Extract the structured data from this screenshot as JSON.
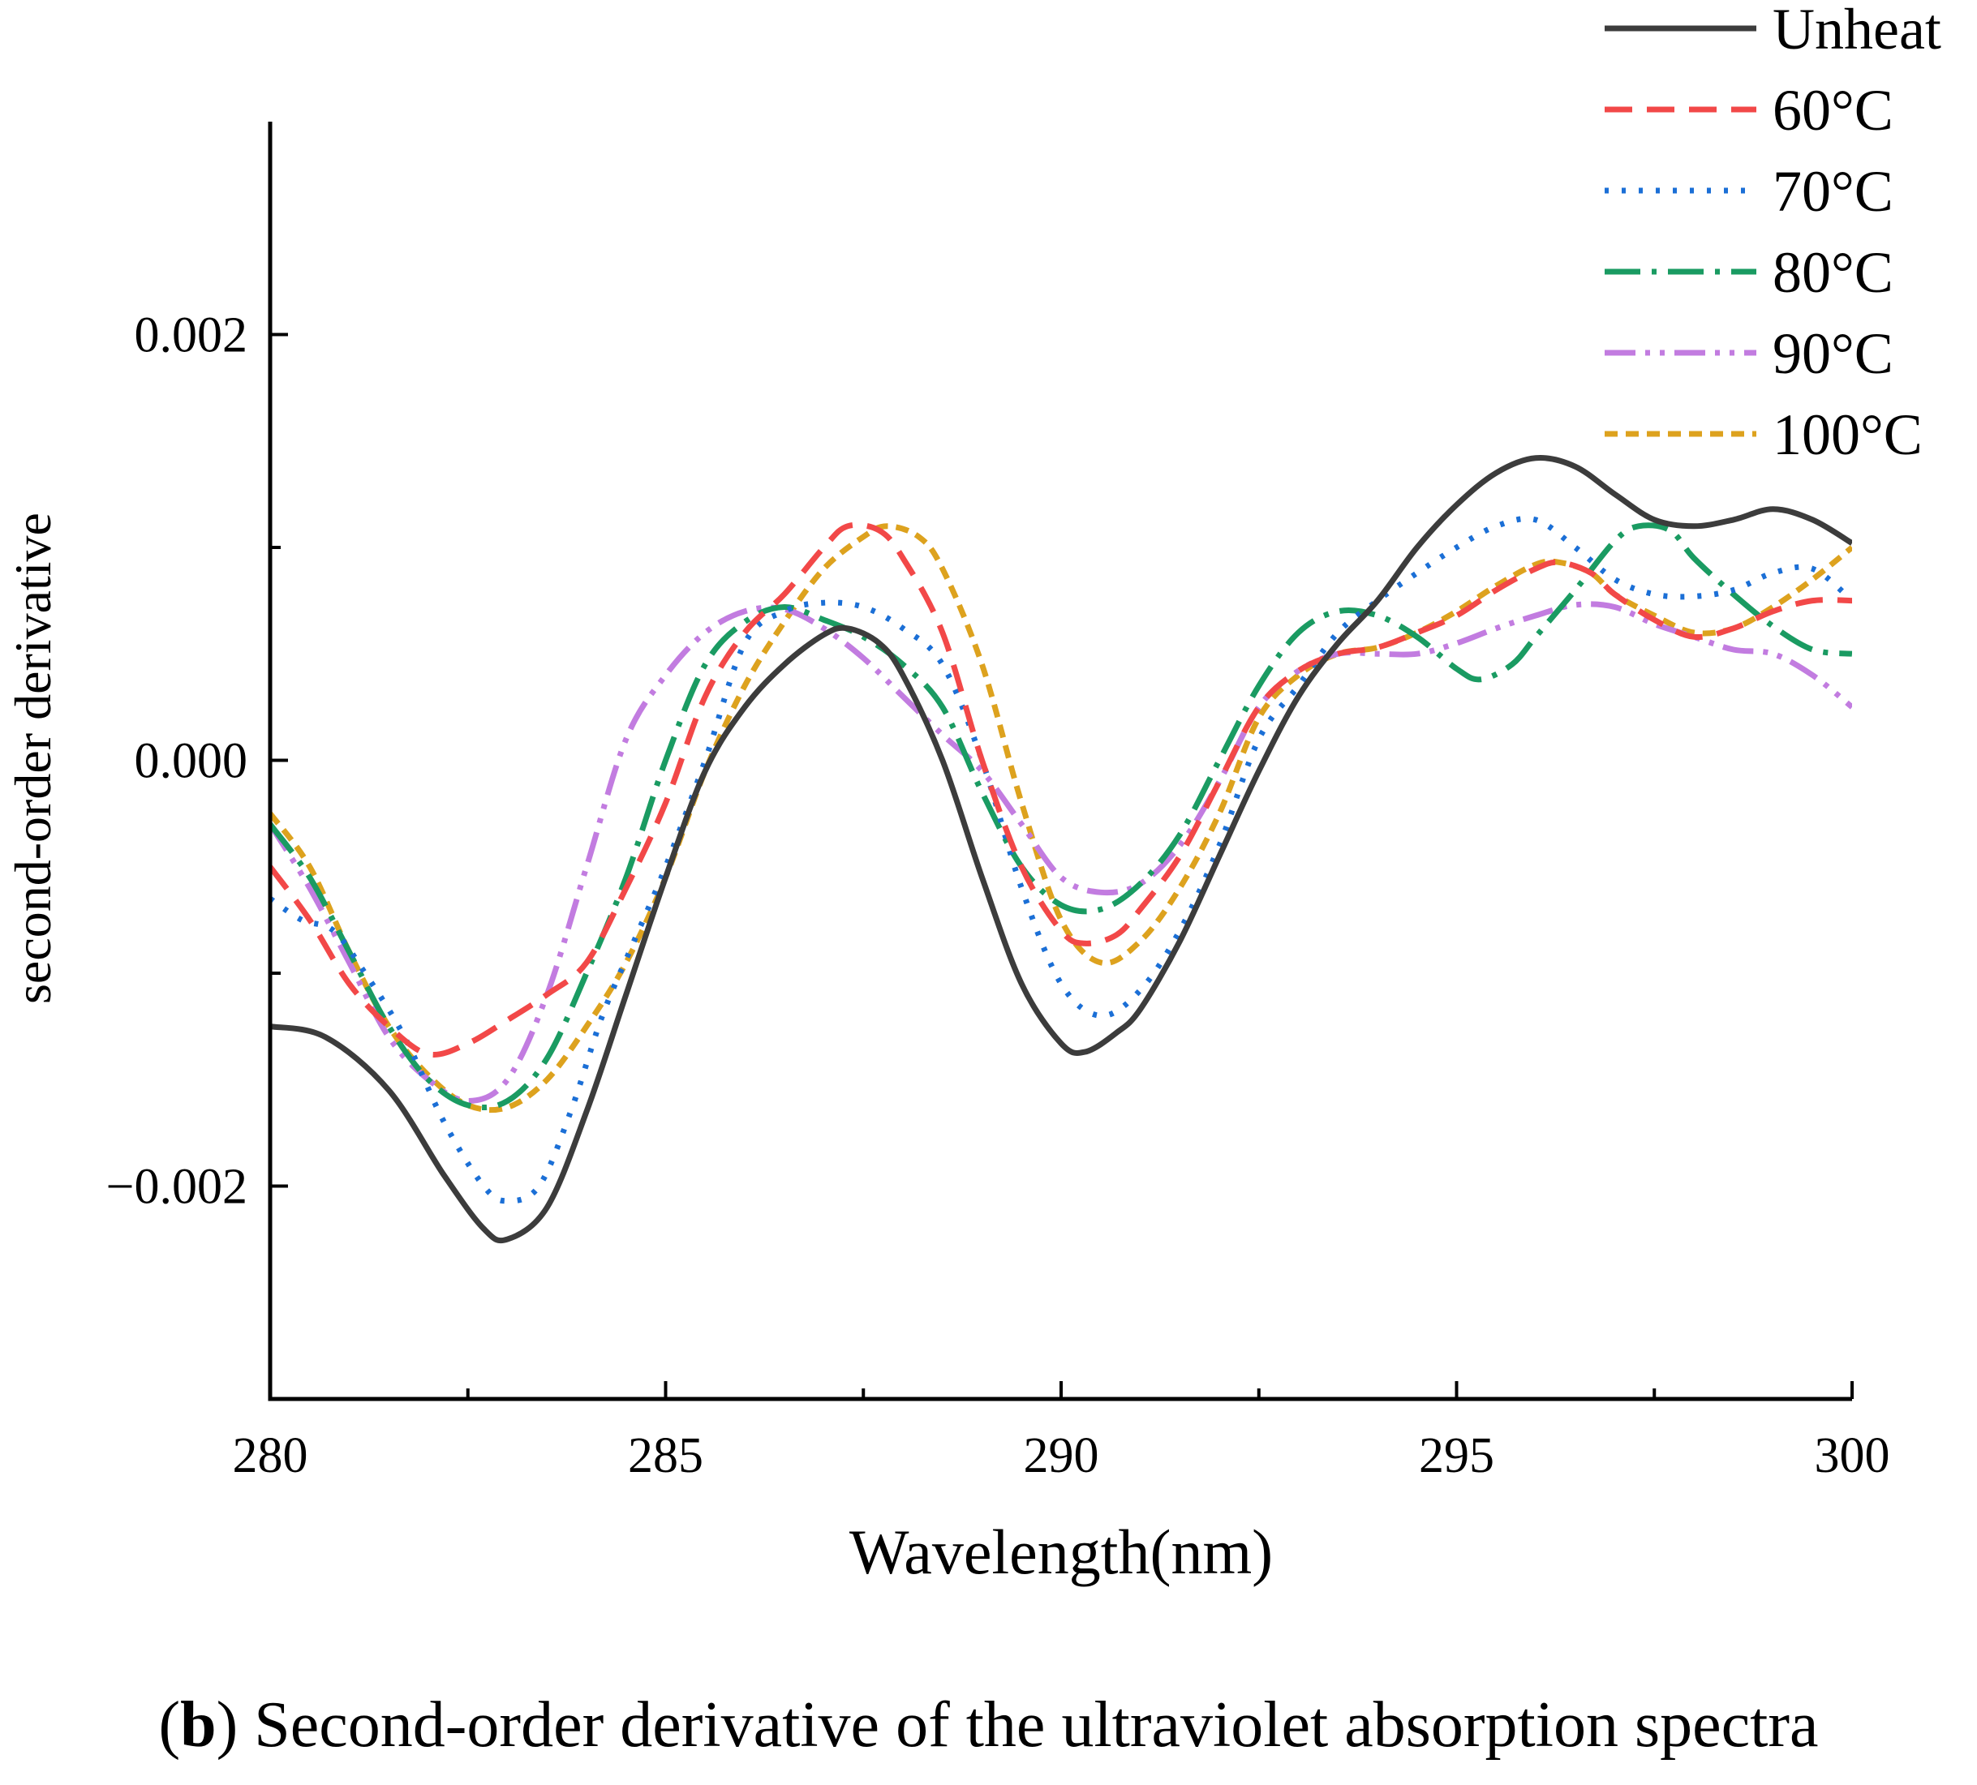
{
  "chart_data": {
    "type": "line",
    "title": "",
    "xlabel": "Wavelength(nm)",
    "ylabel": "second-order derivative",
    "xlim": [
      280,
      300
    ],
    "ylim": [
      -0.003,
      0.003
    ],
    "x_ticks": [
      280,
      285,
      290,
      295,
      300
    ],
    "x_tick_labels": [
      "280",
      "285",
      "290",
      "295",
      "300"
    ],
    "y_ticks": [
      -0.002,
      0.0,
      0.002
    ],
    "y_tick_labels": [
      "−0.002",
      "0.000",
      "0.002"
    ],
    "grid": false,
    "legend_position": "top-right",
    "series": [
      {
        "name": "Unheat",
        "color": "#3c3c3c",
        "dash": "solid",
        "points": [
          [
            280.0,
            -0.00125
          ],
          [
            280.7,
            -0.0013
          ],
          [
            281.5,
            -0.00155
          ],
          [
            282.2,
            -0.00195
          ],
          [
            282.7,
            -0.0022
          ],
          [
            283.0,
            -0.00225
          ],
          [
            283.5,
            -0.0021
          ],
          [
            284.0,
            -0.00165
          ],
          [
            284.5,
            -0.0011
          ],
          [
            285.0,
            -0.00055
          ],
          [
            285.5,
            -5e-05
          ],
          [
            286.0,
            0.00025
          ],
          [
            286.5,
            0.00045
          ],
          [
            287.0,
            0.00059
          ],
          [
            287.3,
            0.00062
          ],
          [
            287.7,
            0.00055
          ],
          [
            288.0,
            0.0004
          ],
          [
            288.5,
            0.0
          ],
          [
            289.0,
            -0.00055
          ],
          [
            289.5,
            -0.00105
          ],
          [
            290.0,
            -0.00133
          ],
          [
            290.3,
            -0.00137
          ],
          [
            290.7,
            -0.00128
          ],
          [
            291.0,
            -0.00117
          ],
          [
            291.5,
            -0.00085
          ],
          [
            292.0,
            -0.00045
          ],
          [
            292.5,
            -5e-05
          ],
          [
            293.0,
            0.0003
          ],
          [
            293.5,
            0.00055
          ],
          [
            294.0,
            0.00075
          ],
          [
            294.5,
            0.001
          ],
          [
            295.0,
            0.0012
          ],
          [
            295.5,
            0.00135
          ],
          [
            296.0,
            0.00142
          ],
          [
            296.5,
            0.00138
          ],
          [
            297.0,
            0.00125
          ],
          [
            297.5,
            0.00113
          ],
          [
            298.0,
            0.0011
          ],
          [
            298.5,
            0.00113
          ],
          [
            299.0,
            0.00118
          ],
          [
            299.5,
            0.00113
          ],
          [
            300.0,
            0.00102
          ]
        ]
      },
      {
        "name": "60°C",
        "color": "#f24848",
        "dash": "34 18",
        "points": [
          [
            280.0,
            -0.0005
          ],
          [
            280.5,
            -0.00075
          ],
          [
            281.0,
            -0.00105
          ],
          [
            281.5,
            -0.00125
          ],
          [
            282.0,
            -0.00138
          ],
          [
            282.5,
            -0.00133
          ],
          [
            283.0,
            -0.00122
          ],
          [
            283.5,
            -0.0011
          ],
          [
            284.0,
            -0.00095
          ],
          [
            284.5,
            -0.0006
          ],
          [
            285.0,
            -0.0002
          ],
          [
            285.5,
            0.0003
          ],
          [
            286.0,
            0.0006
          ],
          [
            286.5,
            0.00078
          ],
          [
            287.0,
            0.001
          ],
          [
            287.3,
            0.0011
          ],
          [
            287.7,
            0.00108
          ],
          [
            288.0,
            0.00095
          ],
          [
            288.5,
            0.0006
          ],
          [
            289.0,
            0.0
          ],
          [
            289.5,
            -0.0005
          ],
          [
            290.0,
            -0.0008
          ],
          [
            290.3,
            -0.00086
          ],
          [
            290.7,
            -0.00082
          ],
          [
            291.0,
            -0.0007
          ],
          [
            291.5,
            -0.00045
          ],
          [
            292.0,
            -0.0001
          ],
          [
            292.5,
            0.00025
          ],
          [
            293.0,
            0.00042
          ],
          [
            293.5,
            0.0005
          ],
          [
            294.0,
            0.00053
          ],
          [
            294.5,
            0.0006
          ],
          [
            295.0,
            0.00068
          ],
          [
            295.5,
            0.0008
          ],
          [
            296.0,
            0.0009
          ],
          [
            296.3,
            0.00093
          ],
          [
            296.7,
            0.00088
          ],
          [
            297.0,
            0.00078
          ],
          [
            297.5,
            0.00066
          ],
          [
            298.0,
            0.00058
          ],
          [
            298.5,
            0.00062
          ],
          [
            299.0,
            0.0007
          ],
          [
            299.5,
            0.00075
          ],
          [
            300.0,
            0.00075
          ]
        ]
      },
      {
        "name": "70°C",
        "color": "#1b6fd6",
        "dash": "5 16",
        "points": [
          [
            280.0,
            -0.00065
          ],
          [
            280.4,
            -0.00075
          ],
          [
            280.8,
            -0.0008
          ],
          [
            281.2,
            -0.001
          ],
          [
            281.7,
            -0.0013
          ],
          [
            282.2,
            -0.0017
          ],
          [
            282.7,
            -0.002
          ],
          [
            283.0,
            -0.00207
          ],
          [
            283.4,
            -0.002
          ],
          [
            283.8,
            -0.00165
          ],
          [
            284.2,
            -0.0012
          ],
          [
            284.6,
            -0.00085
          ],
          [
            285.0,
            -0.0005
          ],
          [
            285.5,
            0.0
          ],
          [
            286.0,
            0.00055
          ],
          [
            286.5,
            0.0007
          ],
          [
            287.0,
            0.00074
          ],
          [
            287.5,
            0.00072
          ],
          [
            288.0,
            0.00062
          ],
          [
            288.5,
            0.00045
          ],
          [
            289.0,
            0.0
          ],
          [
            289.5,
            -0.0006
          ],
          [
            290.0,
            -0.00105
          ],
          [
            290.5,
            -0.0012
          ],
          [
            291.0,
            -0.00108
          ],
          [
            291.5,
            -0.0008
          ],
          [
            292.0,
            -0.0004
          ],
          [
            292.5,
            0.0001
          ],
          [
            293.0,
            0.00035
          ],
          [
            293.5,
            0.0006
          ],
          [
            294.0,
            0.00075
          ],
          [
            294.5,
            0.00088
          ],
          [
            295.0,
            0.001
          ],
          [
            295.5,
            0.0011
          ],
          [
            296.0,
            0.00113
          ],
          [
            296.5,
            0.001
          ],
          [
            297.0,
            0.00085
          ],
          [
            297.5,
            0.00078
          ],
          [
            298.0,
            0.00077
          ],
          [
            298.5,
            0.0008
          ],
          [
            299.0,
            0.00088
          ],
          [
            299.5,
            0.0009
          ],
          [
            300.0,
            0.00075
          ]
        ]
      },
      {
        "name": "80°C",
        "color": "#1a9b62",
        "dash": "44 14 6 14",
        "points": [
          [
            280.0,
            -0.0003
          ],
          [
            280.5,
            -0.00055
          ],
          [
            281.0,
            -0.0009
          ],
          [
            281.5,
            -0.00125
          ],
          [
            282.0,
            -0.0015
          ],
          [
            282.5,
            -0.00162
          ],
          [
            283.0,
            -0.0016
          ],
          [
            283.5,
            -0.0014
          ],
          [
            284.0,
            -0.001
          ],
          [
            284.5,
            -0.00055
          ],
          [
            285.0,
            0.0
          ],
          [
            285.5,
            0.00045
          ],
          [
            286.0,
            0.00065
          ],
          [
            286.5,
            0.00072
          ],
          [
            287.0,
            0.00066
          ],
          [
            287.5,
            0.00058
          ],
          [
            288.0,
            0.00045
          ],
          [
            288.5,
            0.00025
          ],
          [
            289.0,
            -0.00015
          ],
          [
            289.5,
            -0.0005
          ],
          [
            290.0,
            -0.00068
          ],
          [
            290.5,
            -0.0007
          ],
          [
            291.0,
            -0.00058
          ],
          [
            291.5,
            -0.00035
          ],
          [
            292.0,
            0.0
          ],
          [
            292.5,
            0.00035
          ],
          [
            293.0,
            0.0006
          ],
          [
            293.5,
            0.0007
          ],
          [
            294.0,
            0.00068
          ],
          [
            294.5,
            0.00058
          ],
          [
            295.0,
            0.00043
          ],
          [
            295.3,
            0.00038
          ],
          [
            295.7,
            0.00045
          ],
          [
            296.0,
            0.00058
          ],
          [
            296.5,
            0.0008
          ],
          [
            297.0,
            0.00103
          ],
          [
            297.3,
            0.0011
          ],
          [
            297.7,
            0.00108
          ],
          [
            298.0,
            0.00095
          ],
          [
            298.5,
            0.00078
          ],
          [
            299.0,
            0.00063
          ],
          [
            299.5,
            0.00052
          ],
          [
            300.0,
            0.0005
          ]
        ]
      },
      {
        "name": "90°C",
        "color": "#c27ce0",
        "dash": "38 12 6 12 6 12",
        "points": [
          [
            280.0,
            -0.0003
          ],
          [
            280.5,
            -0.0006
          ],
          [
            281.0,
            -0.00095
          ],
          [
            281.5,
            -0.0013
          ],
          [
            282.0,
            -0.0015
          ],
          [
            282.5,
            -0.0016
          ],
          [
            283.0,
            -0.0015
          ],
          [
            283.5,
            -0.0011
          ],
          [
            284.0,
            -0.0005
          ],
          [
            284.5,
            0.0001
          ],
          [
            285.0,
            0.0004
          ],
          [
            285.5,
            0.0006
          ],
          [
            286.0,
            0.0007
          ],
          [
            286.5,
            0.00071
          ],
          [
            287.0,
            0.00062
          ],
          [
            287.5,
            0.00048
          ],
          [
            288.0,
            0.0003
          ],
          [
            288.5,
            0.00012
          ],
          [
            289.0,
            -5e-05
          ],
          [
            289.5,
            -0.0003
          ],
          [
            290.0,
            -0.00055
          ],
          [
            290.5,
            -0.00062
          ],
          [
            291.0,
            -0.00058
          ],
          [
            291.5,
            -0.0004
          ],
          [
            292.0,
            -0.0001
          ],
          [
            292.5,
            0.00025
          ],
          [
            293.0,
            0.00042
          ],
          [
            293.5,
            0.0005
          ],
          [
            294.0,
            0.0005
          ],
          [
            294.5,
            0.0005
          ],
          [
            295.0,
            0.00055
          ],
          [
            295.5,
            0.00062
          ],
          [
            296.0,
            0.00068
          ],
          [
            296.5,
            0.00073
          ],
          [
            297.0,
            0.00072
          ],
          [
            297.5,
            0.00064
          ],
          [
            298.0,
            0.00058
          ],
          [
            298.5,
            0.00052
          ],
          [
            299.0,
            0.0005
          ],
          [
            299.5,
            0.0004
          ],
          [
            300.0,
            0.00025
          ]
        ]
      },
      {
        "name": "100°C",
        "color": "#dda21e",
        "dash": "16 10",
        "points": [
          [
            280.0,
            -0.00025
          ],
          [
            280.5,
            -0.0005
          ],
          [
            281.0,
            -0.0009
          ],
          [
            281.5,
            -0.00125
          ],
          [
            282.0,
            -0.00148
          ],
          [
            282.5,
            -0.00162
          ],
          [
            283.0,
            -0.00163
          ],
          [
            283.5,
            -0.0015
          ],
          [
            284.0,
            -0.00125
          ],
          [
            284.5,
            -0.00095
          ],
          [
            285.0,
            -0.00055
          ],
          [
            285.5,
            -5e-05
          ],
          [
            286.0,
            0.00035
          ],
          [
            286.5,
            0.00065
          ],
          [
            287.0,
            0.0009
          ],
          [
            287.5,
            0.00105
          ],
          [
            287.8,
            0.0011
          ],
          [
            288.2,
            0.00105
          ],
          [
            288.5,
            0.0009
          ],
          [
            289.0,
            0.00045
          ],
          [
            289.5,
            -0.0002
          ],
          [
            290.0,
            -0.00075
          ],
          [
            290.5,
            -0.00095
          ],
          [
            291.0,
            -0.00085
          ],
          [
            291.5,
            -0.0006
          ],
          [
            292.0,
            -0.00025
          ],
          [
            292.5,
            0.0002
          ],
          [
            293.0,
            0.0004
          ],
          [
            293.5,
            0.0005
          ],
          [
            294.0,
            0.00053
          ],
          [
            294.5,
            0.0006
          ],
          [
            295.0,
            0.0007
          ],
          [
            295.5,
            0.00082
          ],
          [
            296.0,
            0.00092
          ],
          [
            296.3,
            0.00093
          ],
          [
            296.7,
            0.00088
          ],
          [
            297.0,
            0.00078
          ],
          [
            297.5,
            0.00068
          ],
          [
            298.0,
            0.0006
          ],
          [
            298.5,
            0.00062
          ],
          [
            299.0,
            0.00072
          ],
          [
            299.5,
            0.00085
          ],
          [
            300.0,
            0.001
          ]
        ]
      }
    ]
  },
  "caption": {
    "label": "b",
    "open_paren": "(",
    "close_paren": ")",
    "text": " Second-order derivative of the ultraviolet absorption spectra"
  }
}
